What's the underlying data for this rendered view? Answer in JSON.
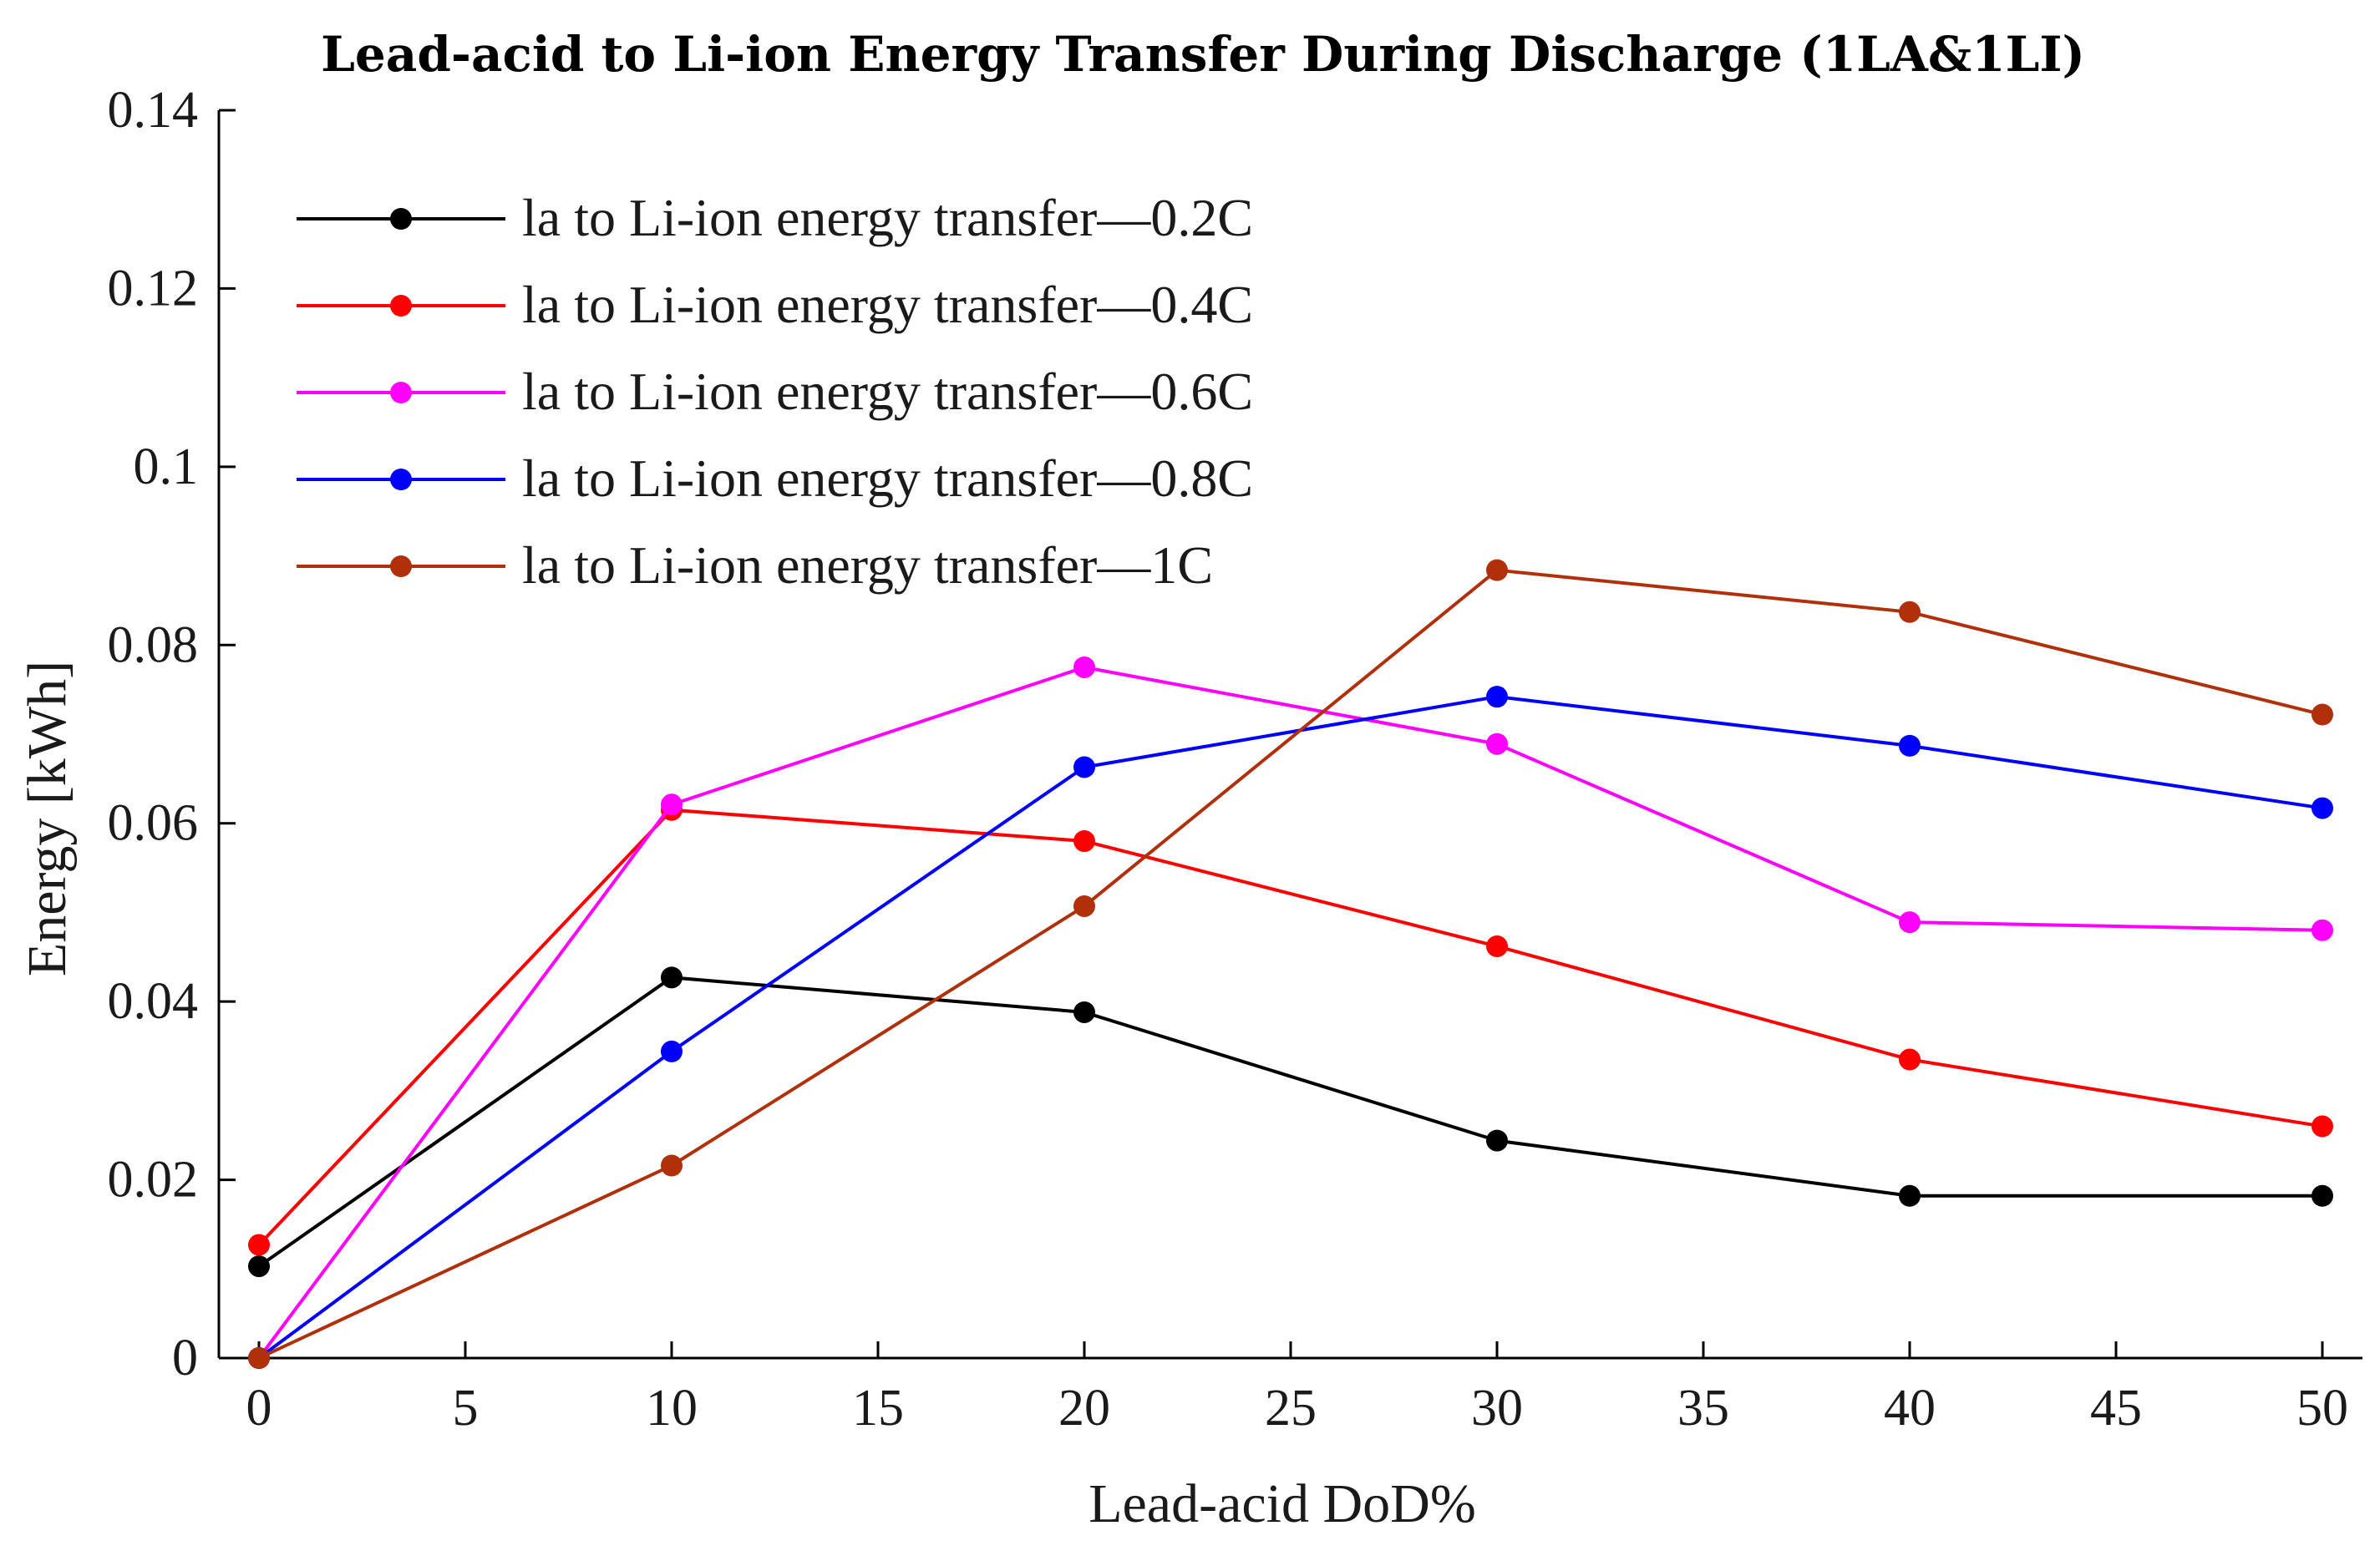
{
  "chart_data": {
    "type": "line",
    "title": "Lead-acid to Li-ion Energy Transfer During Discharge (1LA&1LI)",
    "xlabel": "Lead-acid DoD%",
    "ylabel": "Energy [kWh]",
    "xlim": [
      0,
      50
    ],
    "ylim": [
      0,
      0.14
    ],
    "x_ticks": [
      0,
      5,
      10,
      15,
      20,
      25,
      30,
      35,
      40,
      45,
      50
    ],
    "x_tick_labels": [
      "0",
      "5",
      "10",
      "15",
      "20",
      "25",
      "30",
      "35",
      "40",
      "45",
      "50"
    ],
    "y_ticks": [
      0,
      0.02,
      0.04,
      0.06,
      0.08,
      0.1,
      0.12,
      0.14
    ],
    "y_tick_labels": [
      "0",
      "0.02",
      "0.04",
      "0.06",
      "0.08",
      "0.1",
      "0.12",
      "0.14"
    ],
    "legend_position": "top-left",
    "grid": false,
    "x": [
      0,
      10,
      20,
      30,
      40,
      50
    ],
    "series": [
      {
        "name": "la to Li-ion energy transfer—0.2C",
        "color": "#000000",
        "values": [
          0.0103,
          0.0427,
          0.0388,
          0.0244,
          0.0182,
          0.0182
        ]
      },
      {
        "name": "la to Li-ion energy transfer—0.4C",
        "color": "#ff0000",
        "values": [
          0.0127,
          0.0615,
          0.058,
          0.0462,
          0.0335,
          0.026
        ]
      },
      {
        "name": "la to Li-ion energy transfer—0.6C",
        "color": "#ff00ff",
        "values": [
          0.0,
          0.0621,
          0.0775,
          0.0689,
          0.0489,
          0.048
        ]
      },
      {
        "name": "la to Li-ion energy transfer—0.8C",
        "color": "#0000ff",
        "values": [
          0.0,
          0.0344,
          0.0663,
          0.0742,
          0.0687,
          0.0617
        ]
      },
      {
        "name": "la to Li-ion energy transfer—1C",
        "color": "#b0300a",
        "values": [
          0.0,
          0.0216,
          0.0507,
          0.0884,
          0.0837,
          0.0722
        ]
      }
    ]
  }
}
